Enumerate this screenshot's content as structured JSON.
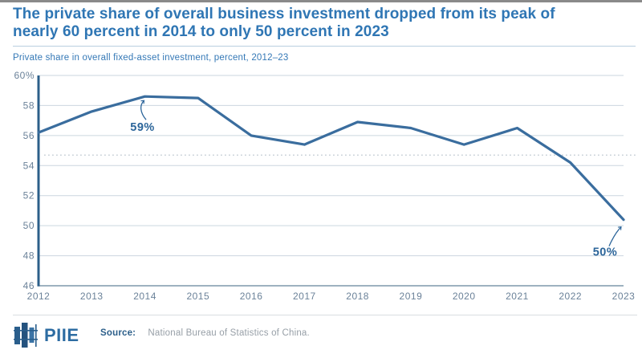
{
  "header": {
    "title_line1": "The private share of overall business investment dropped from its peak of",
    "title_line2": "nearly 60 percent in 2014 to only 50 percent in 2023",
    "subtitle": "Private share in overall fixed-asset investment, percent, 2012–23"
  },
  "chart_data": {
    "type": "line",
    "title": "The private share of overall business investment dropped from its peak of nearly 60 percent in 2014 to only 50 percent in 2023",
    "subtitle": "Private share in overall fixed-asset investment, percent, 2012–23",
    "x": [
      "2012",
      "2013",
      "2014",
      "2015",
      "2016",
      "2017",
      "2018",
      "2019",
      "2020",
      "2021",
      "2022",
      "2023"
    ],
    "series": [
      {
        "name": "Private share in overall fixed-asset investment (percent)",
        "values": [
          56.2,
          57.6,
          58.6,
          58.5,
          56.0,
          55.4,
          56.9,
          56.5,
          55.4,
          56.5,
          54.2,
          50.4
        ]
      }
    ],
    "ylim": [
      46,
      60
    ],
    "y_ticks": [
      {
        "value": 60,
        "label": "60%"
      },
      {
        "value": 58,
        "label": "58"
      },
      {
        "value": 56,
        "label": "56"
      },
      {
        "value": 54,
        "label": "54"
      },
      {
        "value": 52,
        "label": "52"
      },
      {
        "value": 50,
        "label": "50"
      },
      {
        "value": 48,
        "label": "48"
      },
      {
        "value": 46,
        "label": "46"
      }
    ],
    "grid": "horizontal",
    "legend": "none",
    "reference_line": {
      "value": 54.7,
      "style": "dotted",
      "label": ""
    },
    "annotations": [
      {
        "label": "59%",
        "x": "2014",
        "y": 58.6
      },
      {
        "label": "50%",
        "x": "2023",
        "y": 50.4
      }
    ]
  },
  "footer": {
    "logo_text": "PIIE",
    "source_label": "Source:",
    "source_text": "National Bureau of Statistics of China."
  },
  "colors": {
    "title_blue": "#2F76B4",
    "line_blue": "#3A6D9E",
    "dark_blue": "#2C5F8A",
    "annotation_blue": "#2C659A",
    "tick_gray_blue": "#6B8299",
    "gridline": "#CBD6DF",
    "axis_line": "#7E99AC",
    "dotted_line": "#B9C3CB",
    "source_gray": "#979FA7"
  }
}
